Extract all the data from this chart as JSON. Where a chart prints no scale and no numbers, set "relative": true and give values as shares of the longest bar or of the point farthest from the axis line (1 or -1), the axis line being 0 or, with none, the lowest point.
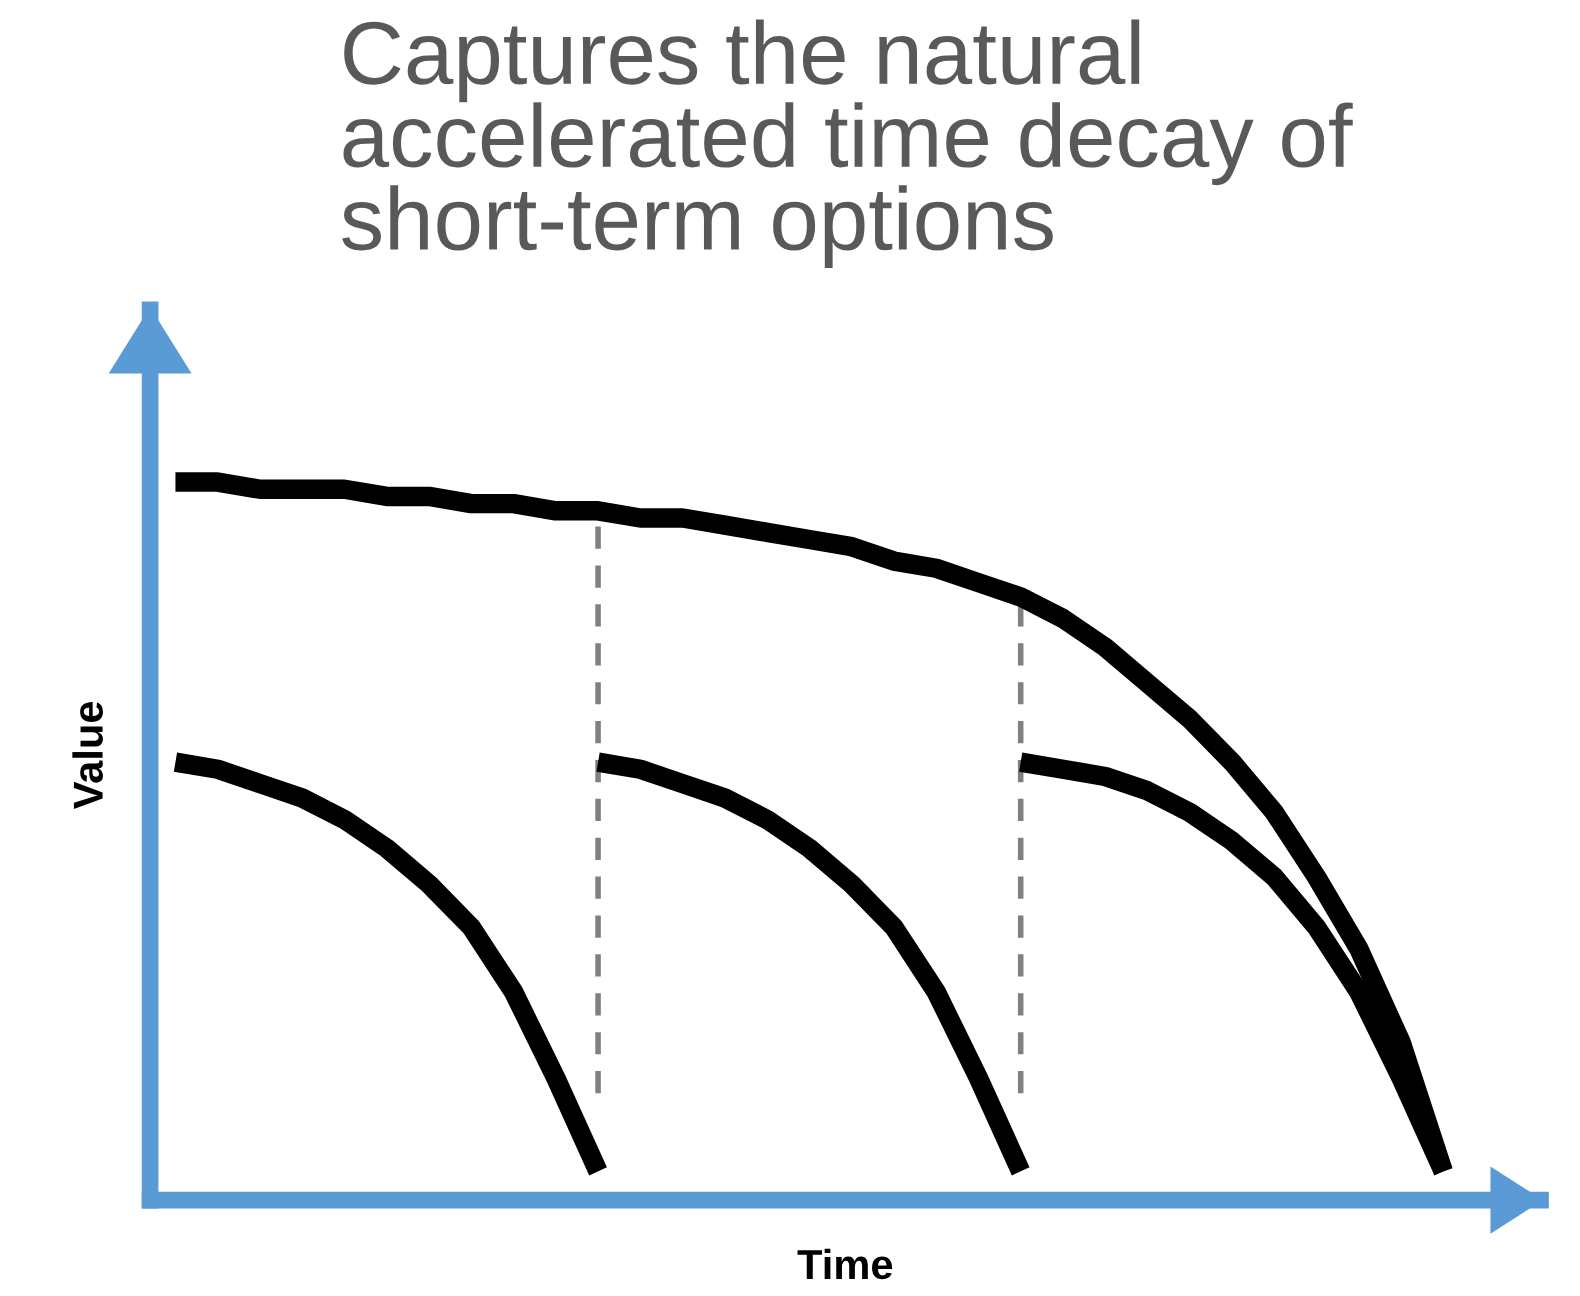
{
  "chart_data": {
    "type": "line",
    "title": "Captures the natural accelerated time decay of short-term options",
    "xlabel": "Time",
    "ylabel": "Value",
    "relative": true,
    "legend": false,
    "categories": [
      null,
      null,
      null,
      null,
      null,
      null,
      null,
      null,
      null,
      null,
      null,
      null,
      null,
      null,
      null,
      null,
      null,
      null,
      null,
      null,
      null,
      null,
      null,
      null,
      null,
      null,
      null,
      null,
      null,
      null,
      null
    ],
    "series": [
      {
        "color": "#000000",
        "values": [
          1.0,
          1.0,
          0.99,
          0.99,
          0.99,
          0.98,
          0.98,
          0.97,
          0.97,
          0.96,
          0.96,
          0.95,
          0.95,
          0.94,
          0.93,
          0.92,
          0.91,
          0.89,
          0.88,
          0.86,
          0.84,
          0.81,
          0.77,
          0.72,
          0.67,
          0.61,
          0.54,
          0.45,
          0.35,
          0.22,
          0.04
        ]
      },
      {
        "color": "#000000",
        "values": [
          0.61,
          0.6,
          0.58,
          0.56,
          0.53,
          0.49,
          0.44,
          0.38,
          0.29,
          0.17,
          0.04,
          null,
          null,
          null,
          null,
          null,
          null,
          null,
          null,
          null,
          null,
          null,
          null,
          null,
          null,
          null,
          null,
          null,
          null,
          null,
          null
        ]
      },
      {
        "color": "#000000",
        "values": [
          null,
          null,
          null,
          null,
          null,
          null,
          null,
          null,
          null,
          null,
          0.61,
          0.6,
          0.58,
          0.56,
          0.53,
          0.49,
          0.44,
          0.38,
          0.29,
          0.17,
          0.04,
          null,
          null,
          null,
          null,
          null,
          null,
          null,
          null,
          null,
          null
        ]
      },
      {
        "color": "#000000",
        "values": [
          null,
          null,
          null,
          null,
          null,
          null,
          null,
          null,
          null,
          null,
          null,
          null,
          null,
          null,
          null,
          null,
          null,
          null,
          null,
          null,
          0.61,
          0.6,
          0.59,
          0.57,
          0.54,
          0.5,
          0.45,
          0.38,
          0.29,
          0.17,
          0.04
        ]
      }
    ]
  }
}
